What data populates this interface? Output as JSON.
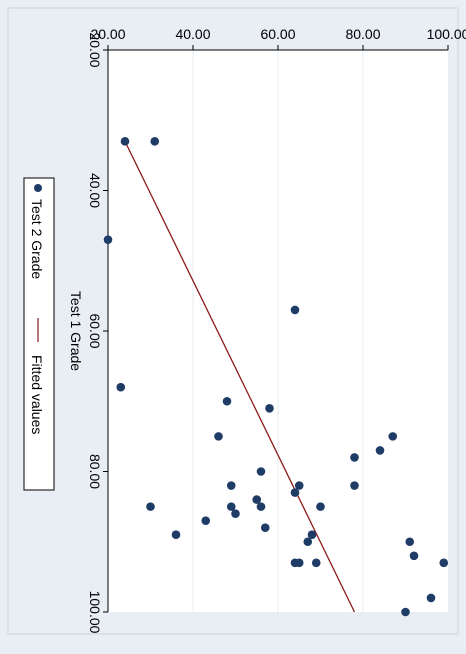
{
  "chart_data": {
    "type": "scatter",
    "rotation_deg": 90,
    "xlabel": "Test 1 Grade",
    "ylabel": "",
    "xlim": [
      20,
      100
    ],
    "ylim": [
      20,
      100
    ],
    "x_ticks": [
      "20.00",
      "40.00",
      "60.00",
      "80.00",
      "100.00"
    ],
    "y_ticks": [
      "20.00",
      "40.00",
      "60.00",
      "80.00",
      "100.00"
    ],
    "grid": true,
    "legend_position": "left",
    "legend": [
      {
        "label": "Test 2 Grade",
        "symbol": "dot"
      },
      {
        "label": "Fitted values",
        "symbol": "line"
      }
    ],
    "colors": {
      "points": "#1f3c66",
      "fit_line": "#8b1a1a",
      "grid": "#e6ecf2",
      "outer_bg": "#e8eef4",
      "plot_bg": "#ffffff"
    },
    "series": [
      {
        "name": "Test 2 Grade",
        "kind": "scatter",
        "points": [
          [
            33,
            24
          ],
          [
            33,
            31
          ],
          [
            47,
            20
          ],
          [
            68,
            23
          ],
          [
            70,
            48
          ],
          [
            71,
            58
          ],
          [
            57,
            64
          ],
          [
            75,
            46
          ],
          [
            77,
            84
          ],
          [
            75,
            87
          ],
          [
            78,
            78
          ],
          [
            80,
            56
          ],
          [
            82,
            49
          ],
          [
            82,
            65
          ],
          [
            82,
            78
          ],
          [
            83,
            64
          ],
          [
            84,
            55
          ],
          [
            85,
            49
          ],
          [
            85,
            30
          ],
          [
            85,
            56
          ],
          [
            85,
            70
          ],
          [
            86,
            50
          ],
          [
            87,
            43
          ],
          [
            88,
            57
          ],
          [
            89,
            36
          ],
          [
            89,
            68
          ],
          [
            90,
            91
          ],
          [
            90,
            67
          ],
          [
            92,
            92
          ],
          [
            93,
            64
          ],
          [
            93,
            65
          ],
          [
            93,
            69
          ],
          [
            93,
            99
          ],
          [
            98,
            96
          ],
          [
            100,
            90
          ]
        ]
      },
      {
        "name": "Fitted values",
        "kind": "line",
        "points": [
          [
            33,
            24
          ],
          [
            100,
            78
          ]
        ]
      }
    ]
  }
}
